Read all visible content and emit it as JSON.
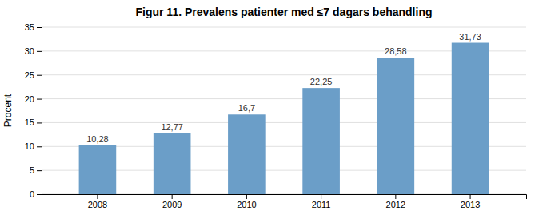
{
  "chart_data": {
    "type": "bar",
    "title": "Figur 11. Prevalens patienter med ≤7 dagars behandling",
    "ylabel": "Procent",
    "categories": [
      "2008",
      "2009",
      "2010",
      "2011",
      "2012",
      "2013"
    ],
    "values": [
      10.28,
      12.77,
      16.7,
      22.25,
      28.58,
      31.73
    ],
    "value_labels": [
      "10,28",
      "12,77",
      "16,7",
      "22,25",
      "28,58",
      "31,73"
    ],
    "color": "#6b9ec8",
    "ylim": [
      0,
      35
    ],
    "yticks": [
      0,
      5,
      10,
      15,
      20,
      25,
      30,
      35
    ],
    "grid": true,
    "data_labels": true
  }
}
